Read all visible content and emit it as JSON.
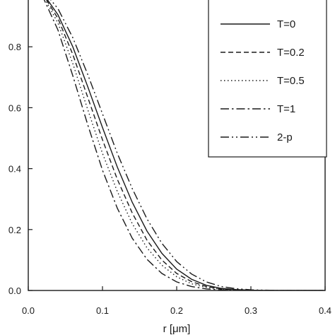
{
  "chart_data": {
    "type": "line",
    "title": "",
    "xlabel": "r [μm]",
    "ylabel": "",
    "xlim": [
      0.0,
      0.4
    ],
    "ylim": [
      0.0,
      1.0
    ],
    "x_ticks": [
      "0.0",
      "0.1",
      "0.2",
      "0.3",
      "0.4"
    ],
    "y_ticks": [
      "0.0",
      "0.2",
      "0.4",
      "0.6",
      "0.8"
    ],
    "grid": false,
    "legend_position": "top-right",
    "series": [
      {
        "name": "T=0",
        "line_style": "solid",
        "x": [
          0.0,
          0.02,
          0.04,
          0.06,
          0.08,
          0.1,
          0.12,
          0.14,
          0.16,
          0.18,
          0.2,
          0.22,
          0.24,
          0.26,
          0.28,
          0.3,
          0.32,
          0.34,
          0.36,
          0.38,
          0.4
        ],
        "y": [
          1.0,
          0.975,
          0.905,
          0.8,
          0.67,
          0.535,
          0.405,
          0.29,
          0.195,
          0.122,
          0.07,
          0.037,
          0.017,
          0.007,
          0.003,
          0.001,
          0.0,
          0.0,
          0.0,
          0.0,
          0.0
        ]
      },
      {
        "name": "T=0.2",
        "line_style": "dashed",
        "x": [
          0.0,
          0.02,
          0.04,
          0.06,
          0.08,
          0.1,
          0.12,
          0.14,
          0.16,
          0.18,
          0.2,
          0.22,
          0.24,
          0.26,
          0.28,
          0.3,
          0.32,
          0.34,
          0.36,
          0.38,
          0.4
        ],
        "y": [
          1.0,
          0.972,
          0.893,
          0.775,
          0.635,
          0.495,
          0.365,
          0.255,
          0.165,
          0.1,
          0.056,
          0.029,
          0.013,
          0.005,
          0.002,
          0.001,
          0.0,
          0.0,
          0.0,
          0.0,
          0.0
        ]
      },
      {
        "name": "T=0.5",
        "line_style": "dotted",
        "x": [
          0.0,
          0.02,
          0.04,
          0.06,
          0.08,
          0.1,
          0.12,
          0.14,
          0.16,
          0.18,
          0.2,
          0.22,
          0.24,
          0.26,
          0.28,
          0.3,
          0.32,
          0.34,
          0.36,
          0.38,
          0.4
        ],
        "y": [
          1.0,
          0.968,
          0.878,
          0.745,
          0.595,
          0.45,
          0.325,
          0.22,
          0.14,
          0.083,
          0.045,
          0.022,
          0.01,
          0.004,
          0.001,
          0.0,
          0.0,
          0.0,
          0.0,
          0.0,
          0.0
        ]
      },
      {
        "name": "T=1",
        "line_style": "dash-dot",
        "x": [
          0.0,
          0.02,
          0.04,
          0.06,
          0.08,
          0.1,
          0.12,
          0.14,
          0.16,
          0.18,
          0.2,
          0.22,
          0.24,
          0.26,
          0.28,
          0.3,
          0.32,
          0.34,
          0.36,
          0.38,
          0.4
        ],
        "y": [
          1.0,
          0.962,
          0.855,
          0.705,
          0.545,
          0.395,
          0.27,
          0.172,
          0.102,
          0.056,
          0.028,
          0.013,
          0.005,
          0.002,
          0.0,
          0.0,
          0.0,
          0.0,
          0.0,
          0.0,
          0.0
        ]
      },
      {
        "name": "2-p",
        "line_style": "dash-dot-dot",
        "x": [
          0.0,
          0.02,
          0.04,
          0.06,
          0.08,
          0.1,
          0.12,
          0.14,
          0.16,
          0.18,
          0.2,
          0.22,
          0.24,
          0.26,
          0.28,
          0.3,
          0.32,
          0.34,
          0.36,
          0.38,
          0.4
        ],
        "y": [
          1.0,
          0.985,
          0.925,
          0.83,
          0.71,
          0.58,
          0.45,
          0.335,
          0.235,
          0.155,
          0.095,
          0.054,
          0.028,
          0.013,
          0.006,
          0.002,
          0.001,
          0.0,
          0.0,
          0.0,
          0.0
        ]
      }
    ]
  }
}
